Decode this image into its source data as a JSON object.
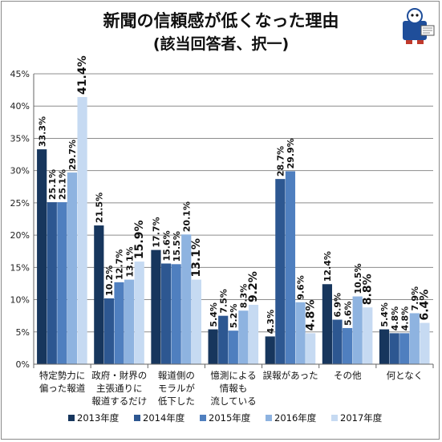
{
  "title_line1": "新聞の信頼感が低くなった理由",
  "title_line2": "(該当回答者、択一)",
  "mascot_icon": "newspaper-mascot-icon",
  "chart_data": {
    "type": "bar",
    "title": "新聞の信頼感が低くなった理由 (該当回答者、択一)",
    "ylim": [
      0,
      45
    ],
    "yticks": [
      "0%",
      "5%",
      "10%",
      "15%",
      "20%",
      "25%",
      "30%",
      "35%",
      "40%",
      "45%"
    ],
    "grid": true,
    "legend_position": "bottom",
    "categories": [
      [
        "特定勢力に",
        "偏った報道"
      ],
      [
        "政府・財界の",
        "主張通りに",
        "報道するだけ"
      ],
      [
        "報道側の",
        "モラルが",
        "低下した"
      ],
      [
        "憶測による",
        "情報も",
        "流している"
      ],
      [
        "誤報があった"
      ],
      [
        "その他"
      ],
      [
        "何となく"
      ]
    ],
    "series": [
      {
        "name": "2013年度",
        "color": "#17365d",
        "values": [
          33.3,
          21.5,
          17.7,
          5.4,
          4.3,
          12.4,
          5.4
        ],
        "labels": [
          "33.3%",
          "21.5%",
          "17.7%",
          "5.4%",
          "4.3%",
          "12.4%",
          "5.4%"
        ]
      },
      {
        "name": "2014年度",
        "color": "#2d5791",
        "values": [
          25.1,
          10.2,
          15.6,
          7.5,
          28.7,
          6.9,
          4.8
        ],
        "labels": [
          "25.1%",
          "10.2%",
          "15.6%",
          "7.5%",
          "28.7%",
          "6.9%",
          "4.8%"
        ]
      },
      {
        "name": "2015年度",
        "color": "#4f7fbf",
        "values": [
          25.1,
          12.7,
          15.5,
          5.2,
          29.9,
          5.6,
          4.8
        ],
        "labels": [
          "25.1%",
          "12.7%",
          "15.5%",
          "5.2%",
          "29.9%",
          "5.6%",
          "4.8%"
        ]
      },
      {
        "name": "2016年度",
        "color": "#8eb3e0",
        "values": [
          29.7,
          13.1,
          20.1,
          8.3,
          9.6,
          10.5,
          7.9
        ],
        "labels": [
          "29.7%",
          "13.1%",
          "20.1%",
          "8.3%",
          "9.6%",
          "10.5%",
          "7.9%"
        ]
      },
      {
        "name": "2017年度",
        "color": "#c6daf2",
        "values": [
          41.4,
          15.9,
          13.1,
          9.2,
          4.8,
          8.8,
          6.4
        ],
        "labels": [
          "41.4%",
          "15.9%",
          "13.1%",
          "9.2%",
          "4.8%",
          "8.8%",
          "6.4%"
        ]
      }
    ]
  }
}
